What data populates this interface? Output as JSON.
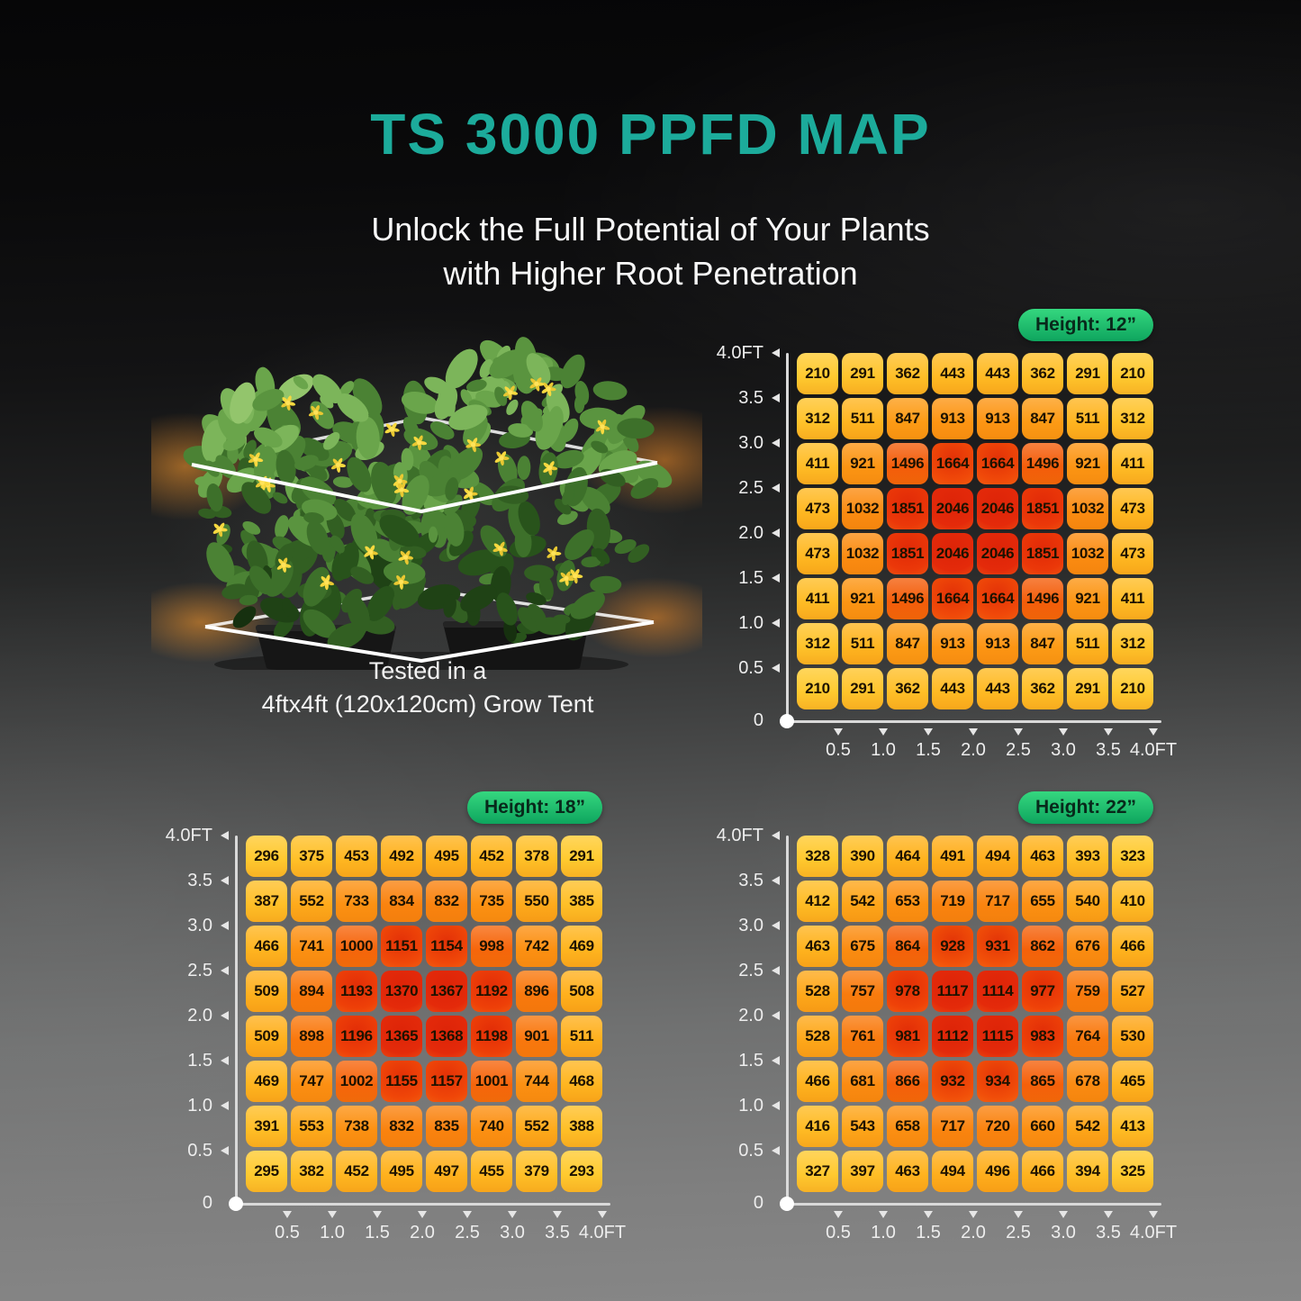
{
  "title": "TS 3000 PPFD MAP",
  "subtitle_line1": "Unlock the Full Potential of Your Plants",
  "subtitle_line2": "with Higher Root Penetration",
  "caption_line1": "Tested in a",
  "caption_line2": "4ftx4ft (120x120cm) Grow Tent",
  "colors": {
    "title": "#1CAB9B",
    "badge_top": "#35d77f",
    "badge_bottom": "#0ea55e",
    "badge_text": "#08291b",
    "cell_text": "#1d1200",
    "axis_text": "#ededed",
    "axis_line": "#d9d9d9",
    "ramp": [
      {
        "t": 0.0,
        "c": "#ffca2f"
      },
      {
        "t": 0.18,
        "c": "#ffb31e"
      },
      {
        "t": 0.36,
        "c": "#fd9914"
      },
      {
        "t": 0.52,
        "c": "#fa800e"
      },
      {
        "t": 0.68,
        "c": "#f5610a"
      },
      {
        "t": 0.84,
        "c": "#ee3f08"
      },
      {
        "t": 1.0,
        "c": "#e42a0a"
      }
    ]
  },
  "axes": {
    "y_labels": [
      "4.0FT",
      "3.5",
      "3.0",
      "2.5",
      "2.0",
      "1.5",
      "1.0",
      "0.5",
      "0"
    ],
    "x_labels": [
      "0.5",
      "1.0",
      "1.5",
      "2.0",
      "2.5",
      "3.0",
      "3.5",
      "4.0FT"
    ],
    "unit": "FT"
  },
  "chart_data": [
    {
      "type": "heatmap",
      "id": "h12",
      "badge": "Height: 12”",
      "xlabel": "FT",
      "ylabel": "FT",
      "x": [
        0.5,
        1.0,
        1.5,
        2.0,
        2.5,
        3.0,
        3.5,
        4.0
      ],
      "y": [
        4.0,
        3.5,
        3.0,
        2.5,
        2.0,
        1.5,
        1.0,
        0.5
      ],
      "values": [
        [
          210,
          291,
          362,
          443,
          443,
          362,
          291,
          210
        ],
        [
          312,
          511,
          847,
          913,
          913,
          847,
          511,
          312
        ],
        [
          411,
          921,
          1496,
          1664,
          1664,
          1496,
          921,
          411
        ],
        [
          473,
          1032,
          1851,
          2046,
          2046,
          1851,
          1032,
          473
        ],
        [
          473,
          1032,
          1851,
          2046,
          2046,
          1851,
          1032,
          473
        ],
        [
          411,
          921,
          1496,
          1664,
          1664,
          1496,
          921,
          411
        ],
        [
          312,
          511,
          847,
          913,
          913,
          847,
          511,
          312
        ],
        [
          210,
          291,
          362,
          443,
          443,
          362,
          291,
          210
        ]
      ]
    },
    {
      "type": "heatmap",
      "id": "h18",
      "badge": "Height: 18”",
      "xlabel": "FT",
      "ylabel": "FT",
      "x": [
        0.5,
        1.0,
        1.5,
        2.0,
        2.5,
        3.0,
        3.5,
        4.0
      ],
      "y": [
        4.0,
        3.5,
        3.0,
        2.5,
        2.0,
        1.5,
        1.0,
        0.5
      ],
      "values": [
        [
          296,
          375,
          453,
          492,
          495,
          452,
          378,
          291
        ],
        [
          387,
          552,
          733,
          834,
          832,
          735,
          550,
          385
        ],
        [
          466,
          741,
          1000,
          1151,
          1154,
          998,
          742,
          469
        ],
        [
          509,
          894,
          1193,
          1370,
          1367,
          1192,
          896,
          508
        ],
        [
          509,
          898,
          1196,
          1365,
          1368,
          1198,
          901,
          511
        ],
        [
          469,
          747,
          1002,
          1155,
          1157,
          1001,
          744,
          468
        ],
        [
          391,
          553,
          738,
          832,
          835,
          740,
          552,
          388
        ],
        [
          295,
          382,
          452,
          495,
          497,
          455,
          379,
          293
        ]
      ]
    },
    {
      "type": "heatmap",
      "id": "h22",
      "badge": "Height: 22”",
      "xlabel": "FT",
      "ylabel": "FT",
      "x": [
        0.5,
        1.0,
        1.5,
        2.0,
        2.5,
        3.0,
        3.5,
        4.0
      ],
      "y": [
        4.0,
        3.5,
        3.0,
        2.5,
        2.0,
        1.5,
        1.0,
        0.5
      ],
      "values": [
        [
          328,
          390,
          464,
          491,
          494,
          463,
          393,
          323
        ],
        [
          412,
          542,
          653,
          719,
          717,
          655,
          540,
          410
        ],
        [
          463,
          675,
          864,
          928,
          931,
          862,
          676,
          466
        ],
        [
          528,
          757,
          978,
          1117,
          1114,
          977,
          759,
          527
        ],
        [
          528,
          761,
          981,
          1112,
          1115,
          983,
          764,
          530
        ],
        [
          466,
          681,
          866,
          932,
          934,
          865,
          678,
          465
        ],
        [
          416,
          543,
          658,
          717,
          720,
          660,
          542,
          413
        ],
        [
          327,
          397,
          463,
          494,
          496,
          466,
          394,
          325
        ]
      ]
    }
  ]
}
